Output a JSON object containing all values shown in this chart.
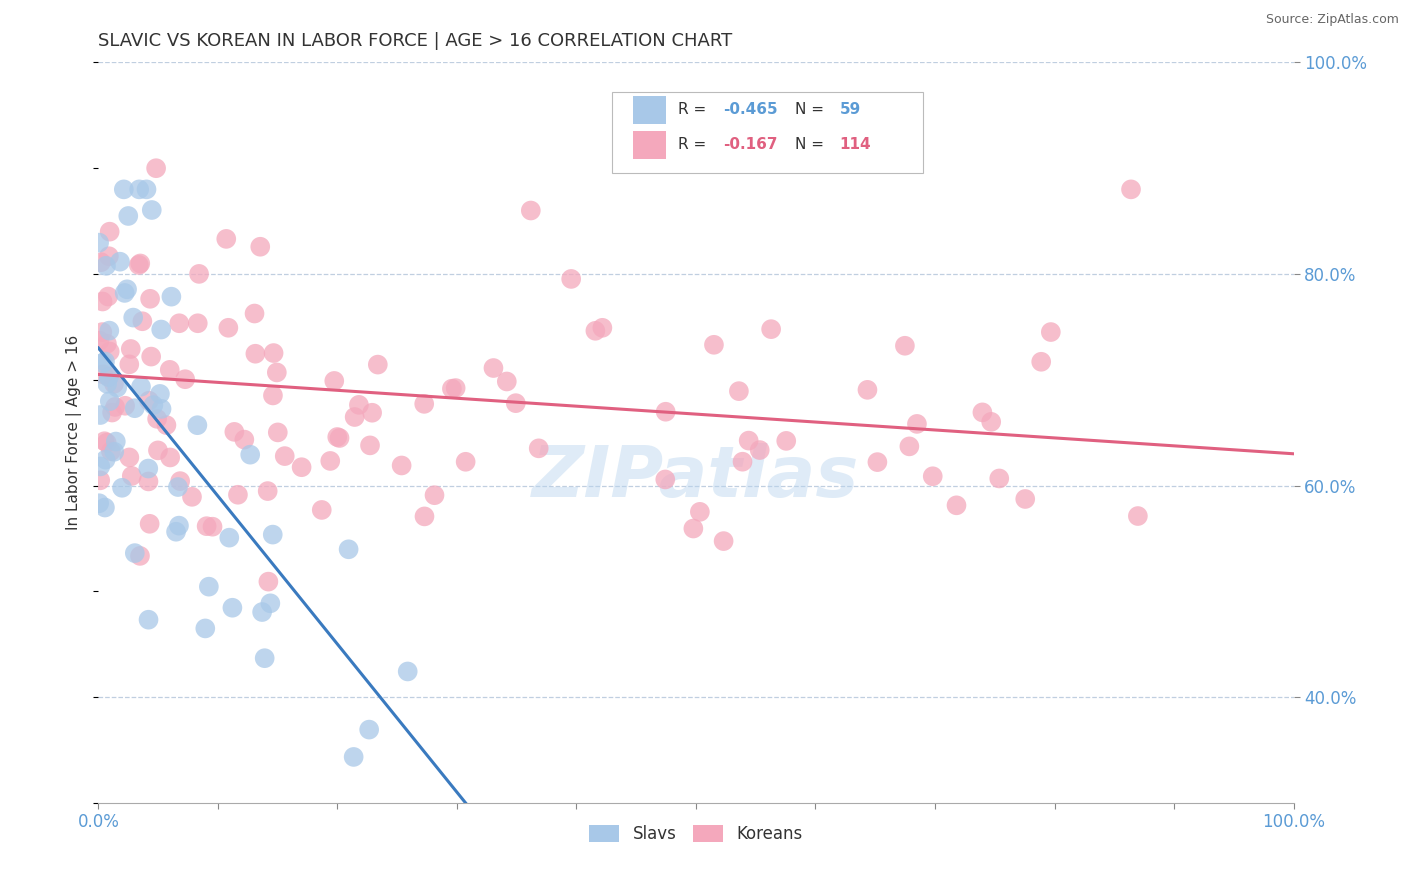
{
  "title": "SLAVIC VS KOREAN IN LABOR FORCE | AGE > 16 CORRELATION CHART",
  "source": "Source: ZipAtlas.com",
  "ylabel": "In Labor Force | Age > 16",
  "legend_slavs_R": "-0.465",
  "legend_slavs_N": "59",
  "legend_koreans_R": "-0.167",
  "legend_koreans_N": "114",
  "watermark": "ZIPatlas",
  "slavs_color": "#a8c8e8",
  "slavs_color_edge": "#7aadd4",
  "koreans_color": "#f4a8bc",
  "koreans_color_edge": "#e87898",
  "slavs_line_color": "#3a7abf",
  "koreans_line_color": "#e06080",
  "background_color": "#ffffff",
  "grid_color": "#c0cfe0",
  "right_label_color": "#5b9bd5",
  "text_color": "#333333",
  "xmin": 0,
  "xmax": 100,
  "ymin": 30,
  "ymax": 100,
  "yticks": [
    40,
    60,
    80,
    100
  ],
  "ytick_labels": [
    "40.0%",
    "60.0%",
    "80.0%",
    "100.0%"
  ]
}
